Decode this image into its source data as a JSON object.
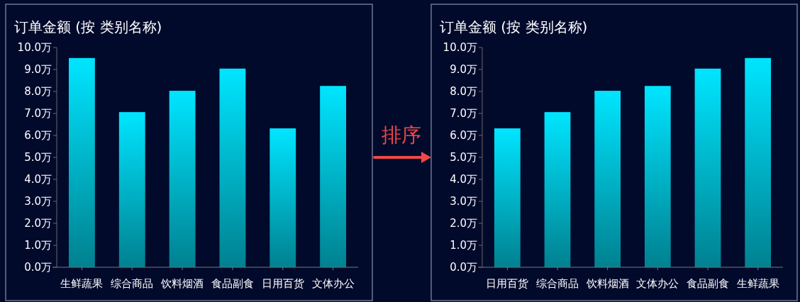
{
  "chart_data": [
    {
      "type": "bar",
      "title": "订单金额 (按 类别名称)",
      "categories": [
        "生鲜蔬果",
        "综合商品",
        "饮料烟酒",
        "食品副食",
        "日用百货",
        "文体办公"
      ],
      "values": [
        9.52,
        7.06,
        8.03,
        9.04,
        6.32,
        8.25
      ],
      "color": "#00e5ff",
      "ylim": [
        0,
        10
      ],
      "yticks": [
        {
          "value": 0,
          "label": "0.0万"
        },
        {
          "value": 1,
          "label": "1.0万"
        },
        {
          "value": 2,
          "label": "2.0万"
        },
        {
          "value": 3,
          "label": "3.0万"
        },
        {
          "value": 4,
          "label": "4.0万"
        },
        {
          "value": 5,
          "label": "5.0万"
        },
        {
          "value": 6,
          "label": "6.0万"
        },
        {
          "value": 7,
          "label": "7.0万"
        },
        {
          "value": 8,
          "label": "8.0万"
        },
        {
          "value": 9,
          "label": "9.0万"
        },
        {
          "value": 10,
          "label": "10.0万"
        }
      ],
      "annotations": [
        "排序"
      ]
    },
    {
      "type": "bar",
      "title": "订单金额 (按 类别名称)",
      "categories": [
        "日用百货",
        "综合商品",
        "饮料烟酒",
        "文体办公",
        "食品副食",
        "生鲜蔬果"
      ],
      "values": [
        6.32,
        7.06,
        8.03,
        8.25,
        9.04,
        9.52
      ],
      "color": "#00e5ff",
      "ylim": [
        0,
        10
      ],
      "yticks": [
        {
          "value": 0,
          "label": "0.0万"
        },
        {
          "value": 1,
          "label": "1.0万"
        },
        {
          "value": 2,
          "label": "2.0万"
        },
        {
          "value": 3,
          "label": "3.0万"
        },
        {
          "value": 4,
          "label": "4.0万"
        },
        {
          "value": 5,
          "label": "5.0万"
        },
        {
          "value": 6,
          "label": "6.0万"
        },
        {
          "value": 7,
          "label": "7.0万"
        },
        {
          "value": 8,
          "label": "8.0万"
        },
        {
          "value": 9,
          "label": "9.0万"
        },
        {
          "value": 10,
          "label": "10.0万"
        }
      ]
    }
  ]
}
